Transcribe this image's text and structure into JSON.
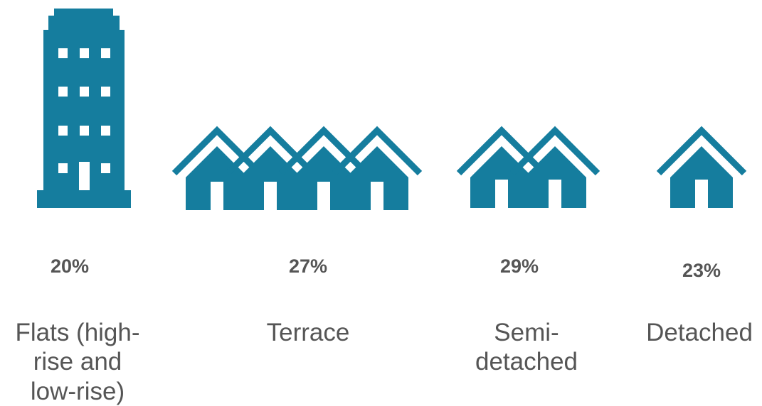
{
  "colors": {
    "icon": "#157d9e",
    "text": "#555555",
    "background": "#ffffff"
  },
  "chart_data": {
    "type": "bar",
    "categories": [
      "Flats (high-rise and low-rise)",
      "Terrace",
      "Semi-detached",
      "Detached"
    ],
    "values": [
      20,
      27,
      29,
      23
    ],
    "value_labels": [
      "20%",
      "27%",
      "29%",
      "23%"
    ],
    "category_labels": [
      [
        "Flats (high-",
        "rise and",
        "low-rise)"
      ],
      [
        "Terrace"
      ],
      [
        "Semi-",
        "detached"
      ],
      [
        "Detached"
      ]
    ],
    "icons": [
      "tower-block-icon",
      "terrace-houses-icon",
      "semi-detached-houses-icon",
      "detached-house-icon"
    ],
    "unit": "%"
  }
}
